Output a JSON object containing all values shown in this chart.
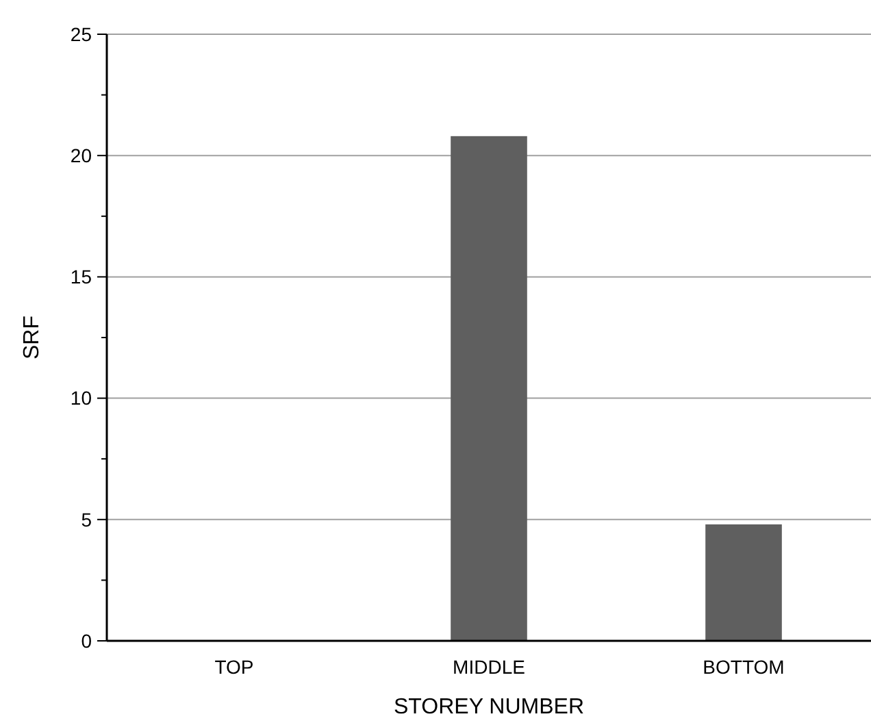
{
  "chart_data": {
    "type": "bar",
    "xlabel": "STOREY NUMBER",
    "ylabel": "SRF",
    "categories": [
      "TOP",
      "MIDDLE",
      "BOTTOM"
    ],
    "values": [
      0,
      20.8,
      4.8
    ],
    "color": "#5f5f5f",
    "ylim": [
      0,
      25
    ],
    "yticks": [
      0,
      {
        "value": 2.5,
        "label": null
      },
      5,
      {
        "value": 7.5,
        "label": null
      },
      10,
      {
        "value": 12.5,
        "label": null
      },
      15,
      {
        "value": 17.5,
        "label": null
      },
      20,
      {
        "value": 22.5,
        "label": null
      },
      25
    ],
    "grid": "y"
  }
}
